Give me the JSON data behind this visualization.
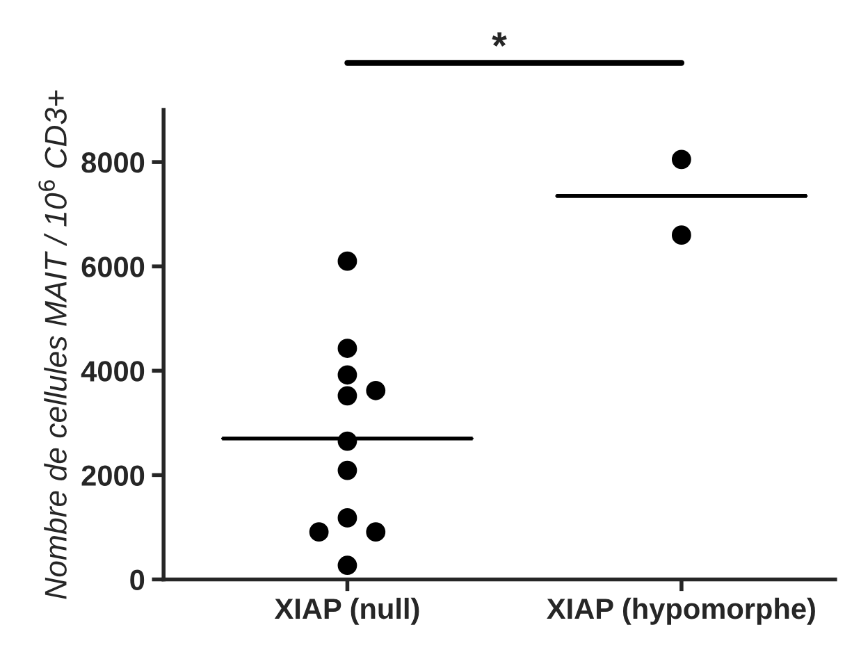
{
  "chart_data": {
    "type": "scatter",
    "ylabel": "Nombre de cellules MAIT / 10$^{6}$ CD3+",
    "categories": [
      "XIAP (null)",
      "XIAP (hypomorphe)"
    ],
    "series": [
      {
        "color": "#000000",
        "x": [
          "XIAP (null)",
          "XIAP (null)",
          "XIAP (null)",
          "XIAP (null)",
          "XIAP (null)",
          "XIAP (null)",
          "XIAP (null)",
          "XIAP (null)",
          "XIAP (null)",
          "XIAP (null)",
          "XIAP (null)"
        ],
        "values": [
          6100,
          4430,
          3920,
          3520,
          3620,
          2650,
          2090,
          1180,
          910,
          910,
          270
        ]
      },
      {
        "color": "#000000",
        "x": [
          "XIAP (hypomorphe)",
          "XIAP (hypomorphe)"
        ],
        "values": [
          8050,
          6600
        ]
      },
      {
        "type": "box",
        "color": "#000000",
        "boxes": [
          {
            "low": 2700,
            "q1": 2700,
            "median": 2700,
            "q3": 2700,
            "high": 2700
          },
          {
            "low": 7350,
            "q1": 7350,
            "median": 7350,
            "q3": 7350,
            "high": 7350
          }
        ]
      }
    ],
    "ylim": [
      0,
      9000
    ],
    "yticks": [
      0,
      2000,
      4000,
      6000,
      8000
    ],
    "grid": false,
    "marker": "circle",
    "annotations": [
      "*"
    ]
  }
}
